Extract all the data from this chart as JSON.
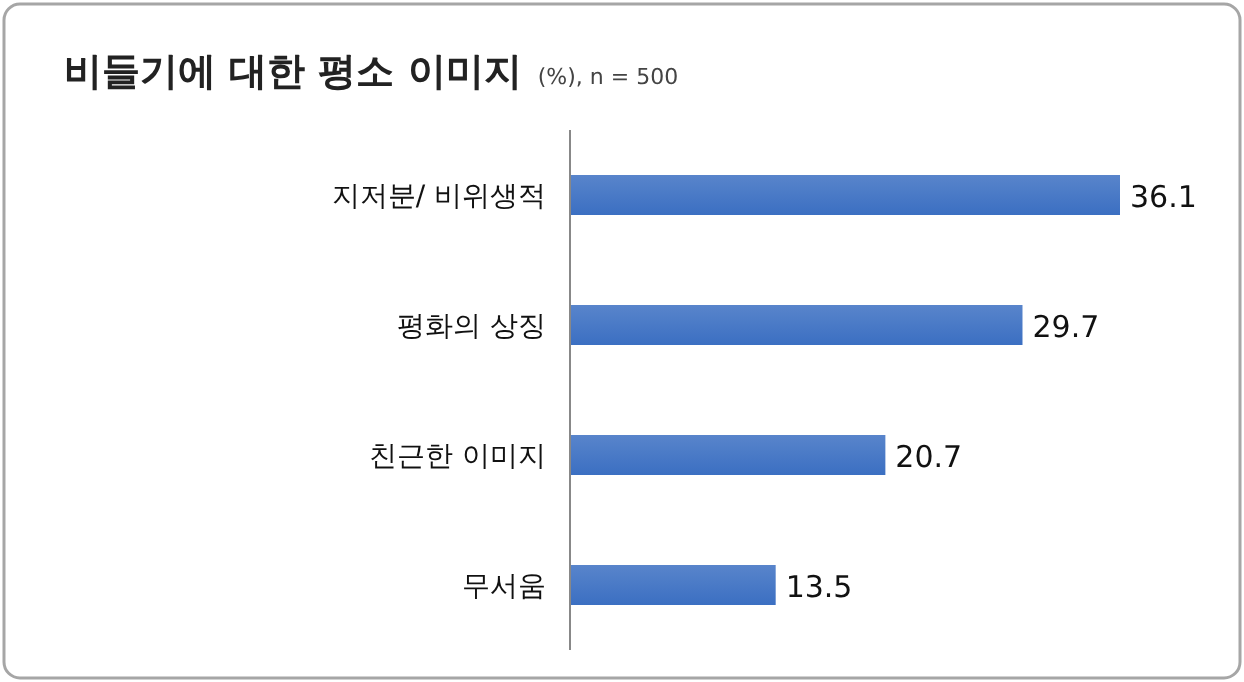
{
  "chart_data": {
    "type": "bar",
    "orientation": "horizontal",
    "title": "비들기에 대한 평소 이미지",
    "subtitle": "(%), n = 500",
    "categories": [
      "지저분/ 비위생적",
      "평화의 상징",
      "친근한 이미지",
      "무서움"
    ],
    "values": [
      36.1,
      29.7,
      20.7,
      13.5
    ],
    "color": "#3b6fc2",
    "data_labels": true
  }
}
